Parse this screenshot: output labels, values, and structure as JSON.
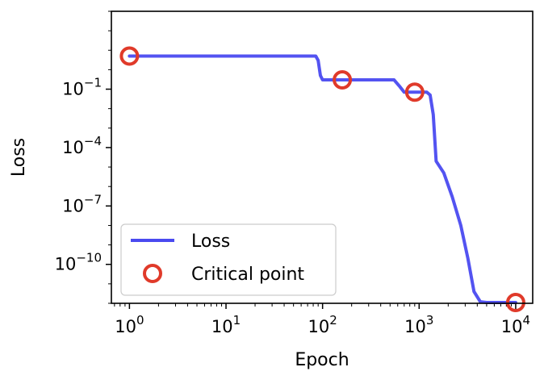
{
  "chart_data": {
    "type": "line",
    "title": "",
    "xlabel": "Epoch",
    "ylabel": "Loss",
    "xscale": "log",
    "yscale": "log",
    "xlim": [
      0.65,
      15000
    ],
    "ylim": [
      1e-12,
      1000
    ],
    "xticks": [
      {
        "value": 1,
        "base": "10",
        "exp": "0"
      },
      {
        "value": 10,
        "base": "10",
        "exp": "1"
      },
      {
        "value": 100,
        "base": "10",
        "exp": "2"
      },
      {
        "value": 1000,
        "base": "10",
        "exp": "3"
      },
      {
        "value": 10000,
        "base": "10",
        "exp": "4"
      }
    ],
    "yticks": [
      {
        "value": 0.1,
        "base": "10",
        "exp": "−1"
      },
      {
        "value": 0.0001,
        "base": "10",
        "exp": "−4"
      },
      {
        "value": 1e-07,
        "base": "10",
        "exp": "−7"
      },
      {
        "value": 1e-10,
        "base": "10",
        "exp": "−10"
      }
    ],
    "grid": false,
    "legend_position": "lower-left",
    "series": [
      {
        "name": "Loss",
        "kind": "line",
        "color": "#4a4af0",
        "x": [
          1,
          85,
          90,
          95,
          100,
          160,
          550,
          620,
          700,
          900,
          1200,
          1300,
          1400,
          1500,
          1800,
          2200,
          2700,
          3200,
          3700,
          4300,
          5000,
          10000
        ],
        "y": [
          5,
          5,
          3,
          0.5,
          0.3,
          0.3,
          0.3,
          0.15,
          0.07,
          0.07,
          0.07,
          0.05,
          0.005,
          2e-05,
          5e-06,
          3e-07,
          1e-08,
          2e-10,
          4e-12,
          1.2e-12,
          1.1e-12,
          1.1e-12
        ]
      },
      {
        "name": "Critical point",
        "kind": "scatter",
        "color": "#e03a2a",
        "x": [
          1,
          160,
          900,
          10000
        ],
        "y": [
          5,
          0.3,
          0.07,
          1.1e-12
        ]
      }
    ]
  }
}
